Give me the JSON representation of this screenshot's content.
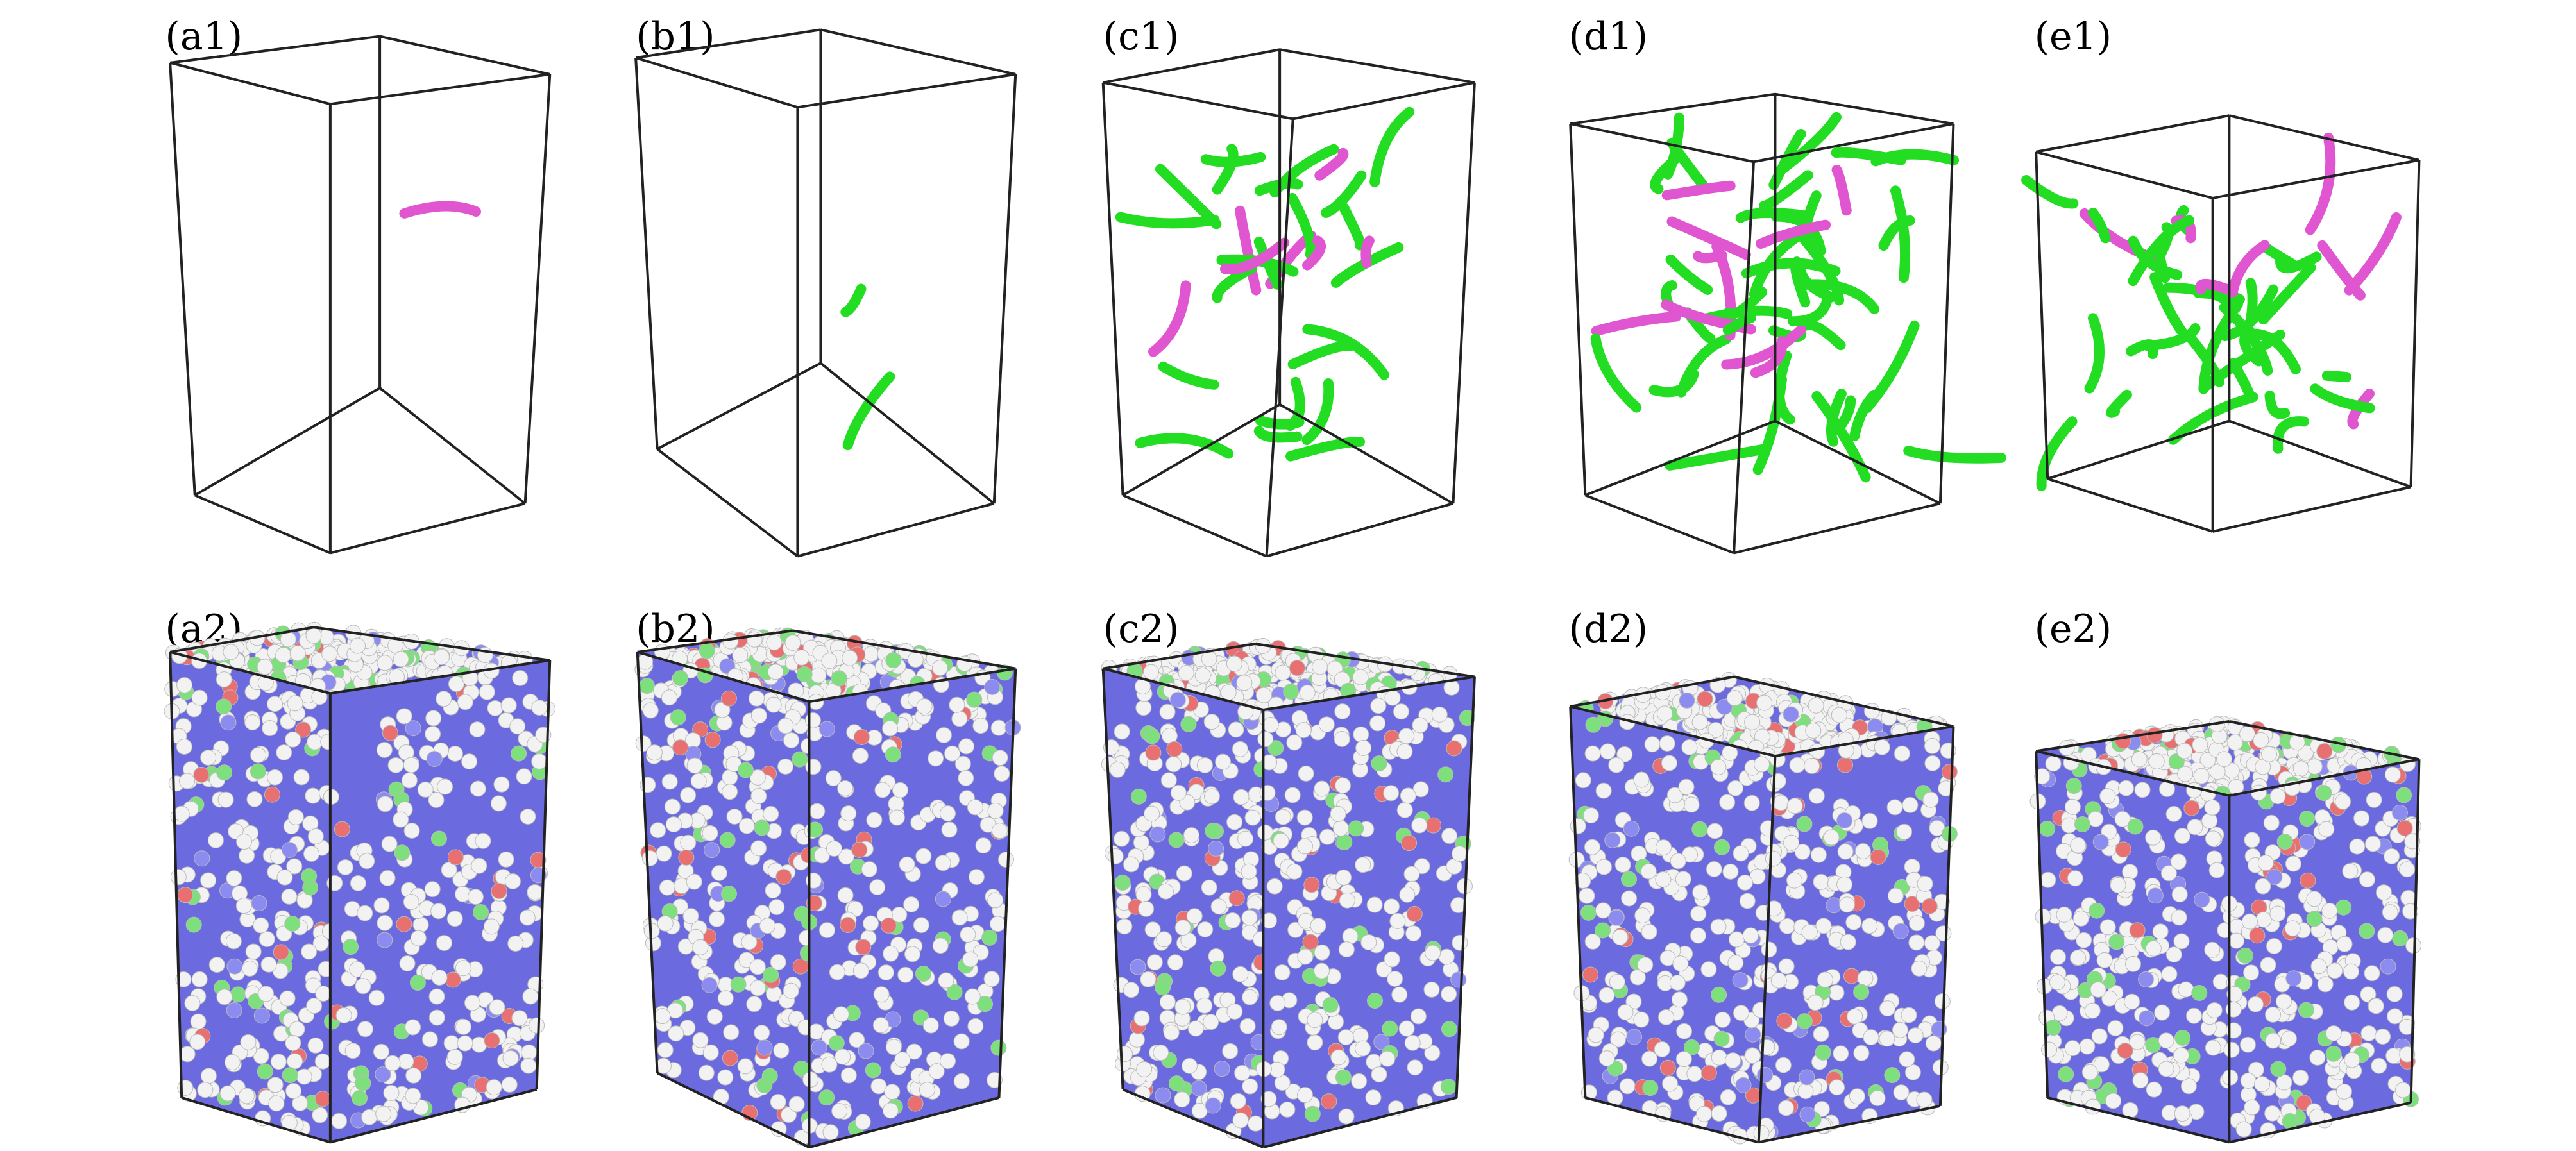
{
  "panels": [
    {
      "label": "(a1)"
    },
    {
      "label": "(b1)"
    },
    {
      "label": "(c1)"
    },
    {
      "label": "(d1)"
    },
    {
      "label": "(e1)"
    },
    {
      "label": "(a2)"
    },
    {
      "label": "(b2)"
    },
    {
      "label": "(c2)"
    },
    {
      "label": "(d2)"
    },
    {
      "label": "(e2)"
    }
  ]
}
